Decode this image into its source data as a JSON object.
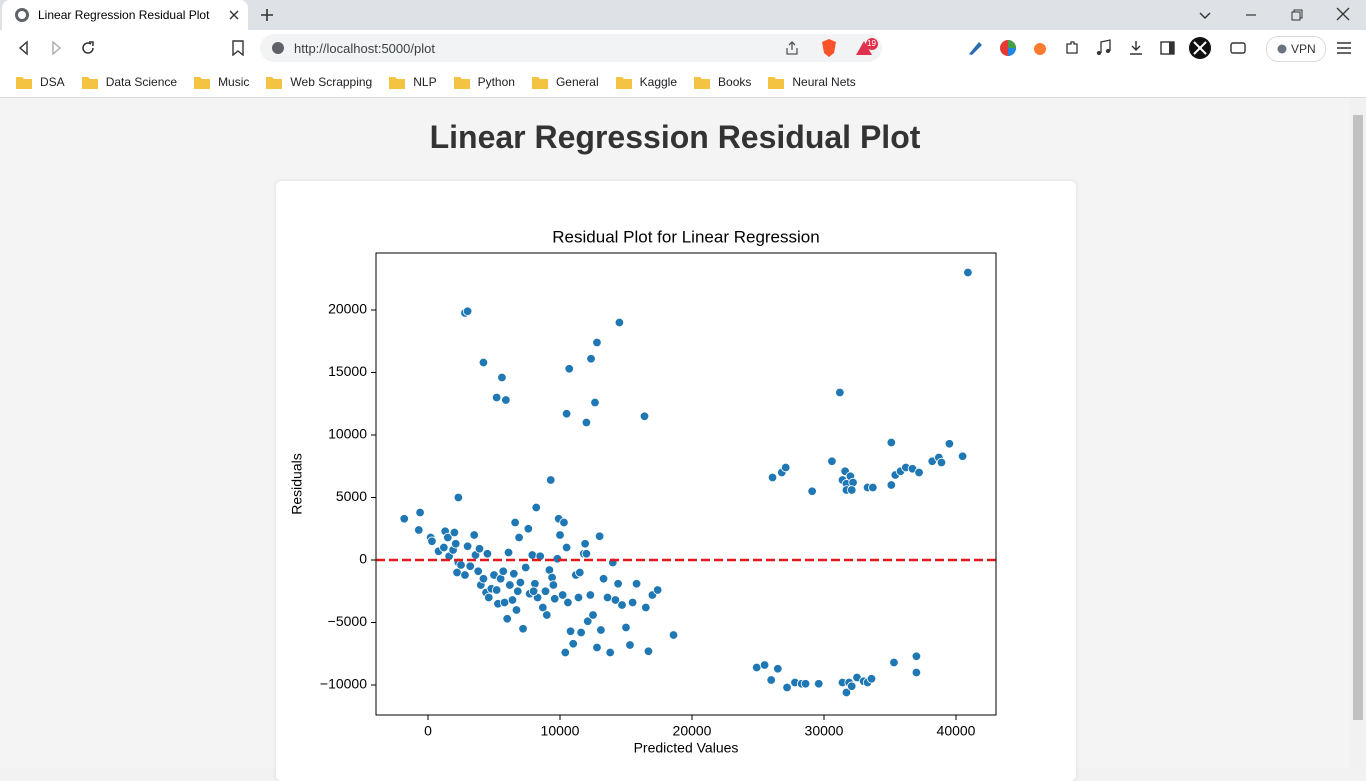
{
  "browser": {
    "tab_title": "Linear Regression Residual Plot",
    "url": "http://localhost:5000/plot",
    "badge": "19",
    "vpn": "VPN",
    "bookmarks": [
      "DSA",
      "Data Science",
      "Music",
      "Web Scrapping",
      "NLP",
      "Python",
      "General",
      "Kaggle",
      "Books",
      "Neural Nets"
    ]
  },
  "page": {
    "heading": "Linear Regression Residual Plot"
  },
  "chart_data": {
    "type": "scatter",
    "title": "Residual Plot for Linear Regression",
    "x_label": "Predicted Values",
    "y_label": "Residuals",
    "color": "#1f77b4",
    "reference_line": {
      "y": 0,
      "color": "#e31a1c",
      "style": "dashed"
    },
    "xlim": [
      -3940,
      43030
    ],
    "ylim": [
      -12400,
      24560
    ],
    "xticks": [
      0,
      10000,
      20000,
      30000,
      40000
    ],
    "yticks": [
      {
        "value": -10000,
        "label": "−10000"
      },
      {
        "value": -5000,
        "label": "−5000"
      },
      0,
      5000,
      10000,
      15000,
      20000
    ],
    "x": [
      2800,
      3000,
      4200,
      5600,
      5200,
      5900,
      10700,
      10500,
      12000,
      12350,
      12800,
      12650,
      14500,
      16400,
      9300,
      8200,
      2300,
      26100,
      26800,
      27100,
      29100,
      30600,
      31200,
      31400,
      31600,
      31700,
      32000,
      32200,
      31700,
      32100,
      33300,
      33700,
      35100,
      35100,
      35400,
      35800,
      36200,
      36700,
      37200,
      38200,
      38700,
      38900,
      39500,
      40500,
      40900,
      24900,
      25500,
      26000,
      26500,
      27200,
      27800,
      28300,
      28600,
      29600,
      31400,
      31700,
      31900,
      32100,
      32500,
      33000,
      33300,
      33600,
      35300,
      37000,
      37000,
      -1800,
      -600,
      -700,
      200,
      300,
      800,
      1200,
      1300,
      1500,
      1600,
      1900,
      2000,
      2100,
      2300,
      2200,
      2500,
      2800,
      3000,
      3200,
      3500,
      3600,
      3800,
      3900,
      4000,
      4200,
      4400,
      4500,
      4600,
      4800,
      5000,
      5200,
      5300,
      5500,
      5700,
      5800,
      6000,
      6100,
      6200,
      6400,
      6500,
      6600,
      6700,
      6800,
      6900,
      7000,
      7200,
      7400,
      7600,
      7700,
      7900,
      8100,
      8300,
      8500,
      8700,
      8900,
      9000,
      9200,
      9400,
      9600,
      9800,
      9900,
      10000,
      10200,
      10300,
      10400,
      10600,
      10800,
      11000,
      11200,
      11400,
      11600,
      11800,
      11900,
      12100,
      12300,
      12500,
      12800,
      13000,
      13100,
      13300,
      13600,
      13800,
      14000,
      14200,
      14400,
      14700,
      15000,
      15300,
      15500,
      15800,
      16500,
      16700,
      17000,
      17400,
      18600,
      11500,
      12000,
      8000,
      9500,
      10500
    ],
    "values": [
      19760,
      19900,
      15800,
      14600,
      13000,
      12800,
      15300,
      11700,
      11000,
      16100,
      17400,
      12600,
      19000,
      11500,
      6400,
      4200,
      5000,
      6600,
      7000,
      7400,
      5500,
      7900,
      13400,
      6400,
      7100,
      6100,
      6700,
      6200,
      5600,
      5600,
      5800,
      5800,
      9400,
      6000,
      6800,
      7100,
      7400,
      7300,
      7000,
      7900,
      8200,
      7800,
      9300,
      8300,
      23000,
      -8600,
      -8400,
      -9600,
      -8700,
      -10200,
      -9800,
      -9900,
      -9900,
      -9900,
      -9800,
      -10600,
      -9800,
      -10100,
      -9400,
      -9700,
      -9800,
      -9500,
      -8200,
      -9000,
      -7700,
      3300,
      3800,
      2400,
      1800,
      1500,
      700,
      1000,
      2300,
      1800,
      300,
      800,
      2200,
      1300,
      -200,
      -1000,
      -400,
      -1200,
      1100,
      -500,
      2000,
      400,
      -900,
      900,
      -2000,
      -1500,
      -2600,
      500,
      -3000,
      -2300,
      -1200,
      -2400,
      -3500,
      -1500,
      -900,
      -3400,
      -4700,
      600,
      -2000,
      -3200,
      -1100,
      3000,
      -4000,
      -2500,
      1800,
      -1800,
      -5500,
      -600,
      2500,
      -2700,
      400,
      -1900,
      -3000,
      300,
      -3800,
      -2500,
      -4400,
      -800,
      -1400,
      -3100,
      100,
      3300,
      2000,
      -2800,
      3000,
      -7400,
      -3400,
      -5700,
      -6700,
      -1200,
      -3000,
      -5800,
      500,
      1300,
      -4900,
      -2800,
      -4400,
      -7000,
      1900,
      -5600,
      -1500,
      -3000,
      -7400,
      -200,
      -3200,
      -1900,
      -3600,
      -5400,
      -6800,
      -3400,
      -1900,
      -3800,
      -7300,
      -2800,
      -2400,
      -6000,
      -1000,
      500,
      -2500,
      -2000,
      1000
    ]
  }
}
